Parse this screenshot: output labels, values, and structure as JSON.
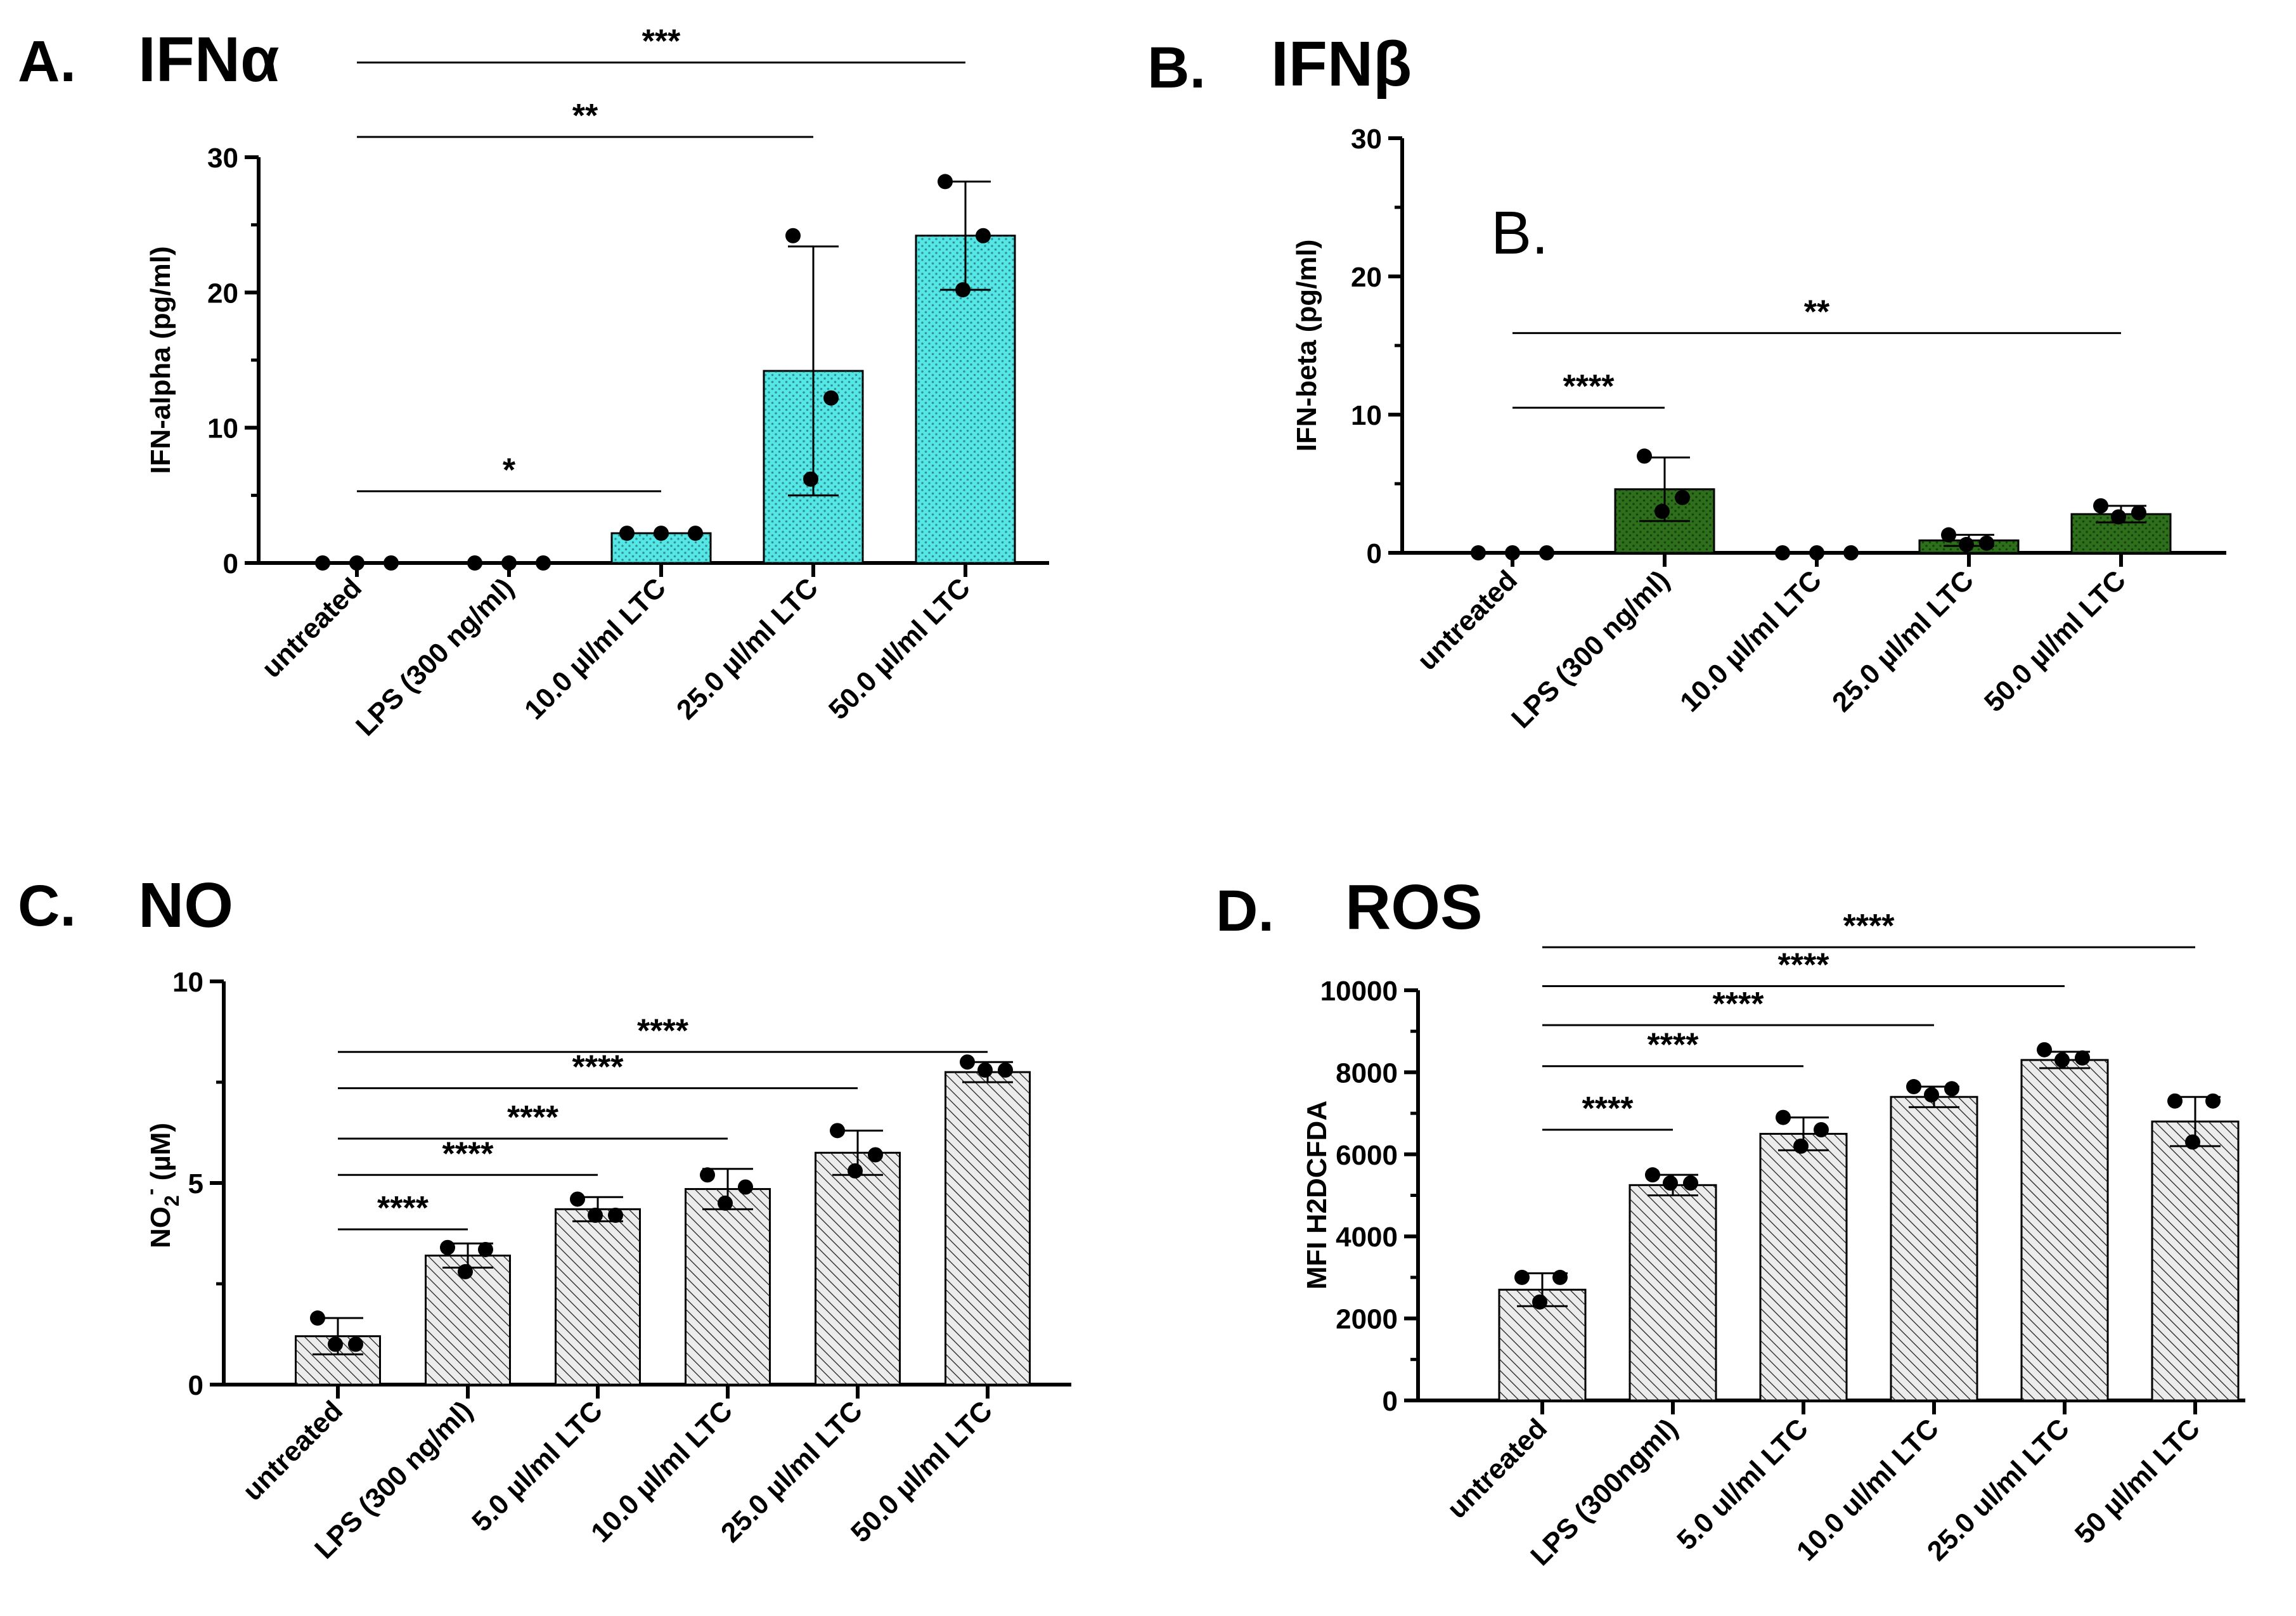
{
  "chart_data": [
    {
      "type": "bar",
      "panel_label": "A.",
      "title": "IFNα",
      "ylabel": "IFN-alpha (pg/ml)",
      "ylim": [
        0,
        30
      ],
      "yticks": [
        "0",
        "10",
        "20",
        "30"
      ],
      "categories": [
        "untreated",
        "LPS (300 ng/ml)",
        "10.0 µl/ml LTC",
        "25.0 µl/ml LTC",
        "50.0 µl/ml LTC"
      ],
      "values": [
        0,
        0,
        2.2,
        14.2,
        24.2
      ],
      "error": [
        0,
        0,
        0,
        9.2,
        4.0
      ],
      "points": [
        [
          0,
          0,
          0
        ],
        [
          0,
          0,
          0
        ],
        [
          2.2,
          2.2,
          2.2
        ],
        [
          24.2,
          12.2,
          6.2
        ],
        [
          28.2,
          24.2,
          20.2
        ]
      ],
      "bar_color": "#55e6e6",
      "pattern": "dots",
      "annotations": [],
      "significance": [
        {
          "from": 0,
          "to": 2,
          "label": "*",
          "y": 5.3
        },
        {
          "from": 0,
          "to": 3,
          "label": "**",
          "y": 31.5
        },
        {
          "from": 0,
          "to": 4,
          "label": "***",
          "y": 37.0
        }
      ]
    },
    {
      "type": "bar",
      "panel_label": "B.",
      "title": "IFNβ",
      "ylabel": "IFN-beta (pg/ml)",
      "ylim": [
        0,
        30
      ],
      "yticks": [
        "0",
        "10",
        "20",
        "30"
      ],
      "categories": [
        "untreated",
        "LPS (300 ng/ml)",
        "10.0 µl/ml LTC",
        "25.0 µl/ml LTC",
        "50.0 µl/ml LTC"
      ],
      "values": [
        0,
        4.6,
        0,
        0.9,
        2.8
      ],
      "error": [
        0,
        2.3,
        0,
        0.4,
        0.6
      ],
      "points": [
        [
          0,
          0,
          0
        ],
        [
          7.0,
          4.0,
          3.0
        ],
        [
          0,
          0,
          0
        ],
        [
          1.3,
          0.7,
          0.6
        ],
        [
          3.4,
          2.9,
          2.6
        ]
      ],
      "bar_color": "#2e6f1b",
      "pattern": "dots",
      "annotations": [
        "B."
      ],
      "significance": [
        {
          "from": 0,
          "to": 1,
          "label": "****",
          "y": 10.5
        },
        {
          "from": 0,
          "to": 4,
          "label": "**",
          "y": 15.9
        }
      ]
    },
    {
      "type": "bar",
      "panel_label": "C.",
      "title": "NO",
      "ylabel": "NO2- (µM)",
      "ylabel_base": "NO",
      "ylabel_sub": "2",
      "ylabel_sup": "-",
      "ylabel_unit": " (µM)",
      "ylim": [
        0,
        10
      ],
      "yticks": [
        "0",
        "5",
        "10"
      ],
      "categories": [
        "untreated",
        "LPS (300 ng/ml)",
        "5.0 µl/ml LTC",
        "10.0 µl/ml LTC",
        "25.0 µl/ml LTC",
        "50.0 µl/ml LTC"
      ],
      "values": [
        1.2,
        3.2,
        4.35,
        4.85,
        5.75,
        7.75
      ],
      "error": [
        0.45,
        0.3,
        0.3,
        0.5,
        0.55,
        0.25
      ],
      "points": [
        [
          1.65,
          1.0,
          1.0
        ],
        [
          3.4,
          3.35,
          2.8
        ],
        [
          4.6,
          4.2,
          4.2
        ],
        [
          5.2,
          4.9,
          4.5
        ],
        [
          6.3,
          5.7,
          5.3
        ],
        [
          8.0,
          7.8,
          7.8
        ]
      ],
      "bar_color": "#ececec",
      "pattern": "hatch",
      "annotations": [],
      "significance": [
        {
          "from": 0,
          "to": 1,
          "label": "****",
          "y": 3.85
        },
        {
          "from": 0,
          "to": 2,
          "label": "****",
          "y": 5.2
        },
        {
          "from": 0,
          "to": 3,
          "label": "****",
          "y": 6.1
        },
        {
          "from": 0,
          "to": 4,
          "label": "****",
          "y": 7.35
        },
        {
          "from": 0,
          "to": 5,
          "label": "****",
          "y": 8.25
        }
      ]
    },
    {
      "type": "bar",
      "panel_label": "D.",
      "title": "ROS",
      "ylabel": "MFI H2DCFDA",
      "ylim": [
        0,
        10000
      ],
      "yticks": [
        "0",
        "2000",
        "4000",
        "6000",
        "8000",
        "10000"
      ],
      "categories": [
        "untreated",
        "LPS (300ngml)",
        "5.0 ul/ml LTC",
        "10.0 ul/ml LTC",
        "25.0 ul/ml LTC",
        "50 µl/ml LTC"
      ],
      "values": [
        2700,
        5250,
        6500,
        7400,
        8300,
        6800
      ],
      "error": [
        400,
        250,
        400,
        250,
        200,
        600
      ],
      "points": [
        [
          3000,
          3000,
          2400
        ],
        [
          5500,
          5300,
          5300
        ],
        [
          6900,
          6600,
          6200
        ],
        [
          7650,
          7600,
          7450
        ],
        [
          8550,
          8350,
          8300
        ],
        [
          7300,
          7300,
          6300
        ]
      ],
      "bar_color": "#ececec",
      "pattern": "hatch",
      "annotations": [],
      "significance": [
        {
          "from": 0,
          "to": 1,
          "label": "****",
          "y": 6600
        },
        {
          "from": 0,
          "to": 2,
          "label": "****",
          "y": 8150
        },
        {
          "from": 0,
          "to": 3,
          "label": "****",
          "y": 9150
        },
        {
          "from": 0,
          "to": 4,
          "label": "****",
          "y": 10100
        },
        {
          "from": 0,
          "to": 5,
          "label": "****",
          "y": 11050
        }
      ]
    }
  ]
}
